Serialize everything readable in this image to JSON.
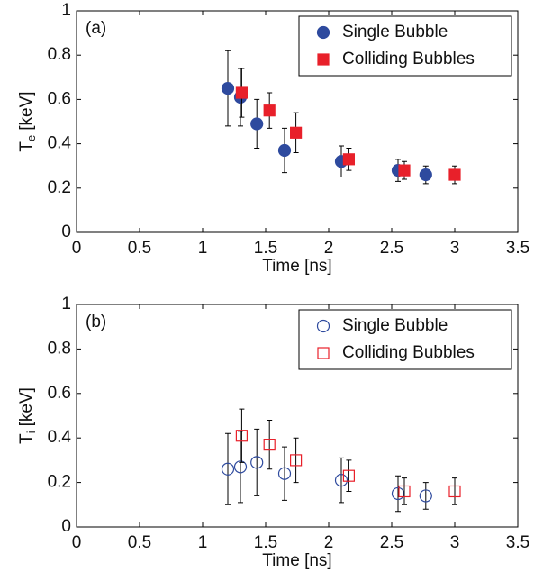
{
  "chart_data": [
    {
      "type": "scatter",
      "annotation": "(a)",
      "xlabel": "Time [ns]",
      "ylabel": [
        "T",
        "e",
        "[keV]"
      ],
      "xlim": [
        0,
        3.5
      ],
      "xticks": [
        0,
        0.5,
        1,
        1.5,
        2,
        2.5,
        3,
        3.5
      ],
      "ylim": [
        0,
        1
      ],
      "yticks": [
        0,
        0.2,
        0.4,
        0.6,
        0.8,
        1
      ],
      "filled": true,
      "legend": "upper right",
      "series": [
        {
          "name": "Single Bubble",
          "color": "#2e4a9e",
          "marker": "circle",
          "x": [
            1.2,
            1.3,
            1.43,
            1.65,
            2.1,
            2.55,
            2.77
          ],
          "values": [
            0.65,
            0.61,
            0.49,
            0.37,
            0.32,
            0.28,
            0.26
          ],
          "errors": [
            0.17,
            0.13,
            0.11,
            0.1,
            0.07,
            0.05,
            0.04
          ]
        },
        {
          "name": "Colliding Bubbles",
          "color": "#e8202a",
          "marker": "square",
          "x": [
            1.31,
            1.53,
            1.74,
            2.16,
            2.6,
            3.0
          ],
          "values": [
            0.63,
            0.55,
            0.45,
            0.33,
            0.28,
            0.26
          ],
          "errors": [
            0.11,
            0.08,
            0.09,
            0.05,
            0.04,
            0.04
          ]
        }
      ]
    },
    {
      "type": "scatter",
      "annotation": "(b)",
      "xlabel": "Time [ns]",
      "ylabel": [
        "T",
        "i",
        "[keV]"
      ],
      "xlim": [
        0,
        3.5
      ],
      "xticks": [
        0,
        0.5,
        1,
        1.5,
        2,
        2.5,
        3,
        3.5
      ],
      "ylim": [
        0,
        1
      ],
      "yticks": [
        0,
        0.2,
        0.4,
        0.6,
        0.8,
        1
      ],
      "filled": false,
      "legend": "upper right",
      "series": [
        {
          "name": "Single Bubble",
          "color": "#2e4a9e",
          "marker": "circle",
          "x": [
            1.2,
            1.3,
            1.43,
            1.65,
            2.1,
            2.55,
            2.77
          ],
          "values": [
            0.26,
            0.27,
            0.29,
            0.24,
            0.21,
            0.15,
            0.14
          ],
          "errors": [
            0.16,
            0.16,
            0.15,
            0.12,
            0.1,
            0.08,
            0.06
          ]
        },
        {
          "name": "Colliding Bubbles",
          "color": "#e8202a",
          "marker": "square",
          "x": [
            1.31,
            1.53,
            1.74,
            2.16,
            2.6,
            3.0
          ],
          "values": [
            0.41,
            0.37,
            0.3,
            0.23,
            0.16,
            0.16
          ],
          "errors": [
            0.12,
            0.11,
            0.1,
            0.07,
            0.06,
            0.06
          ]
        }
      ]
    }
  ]
}
